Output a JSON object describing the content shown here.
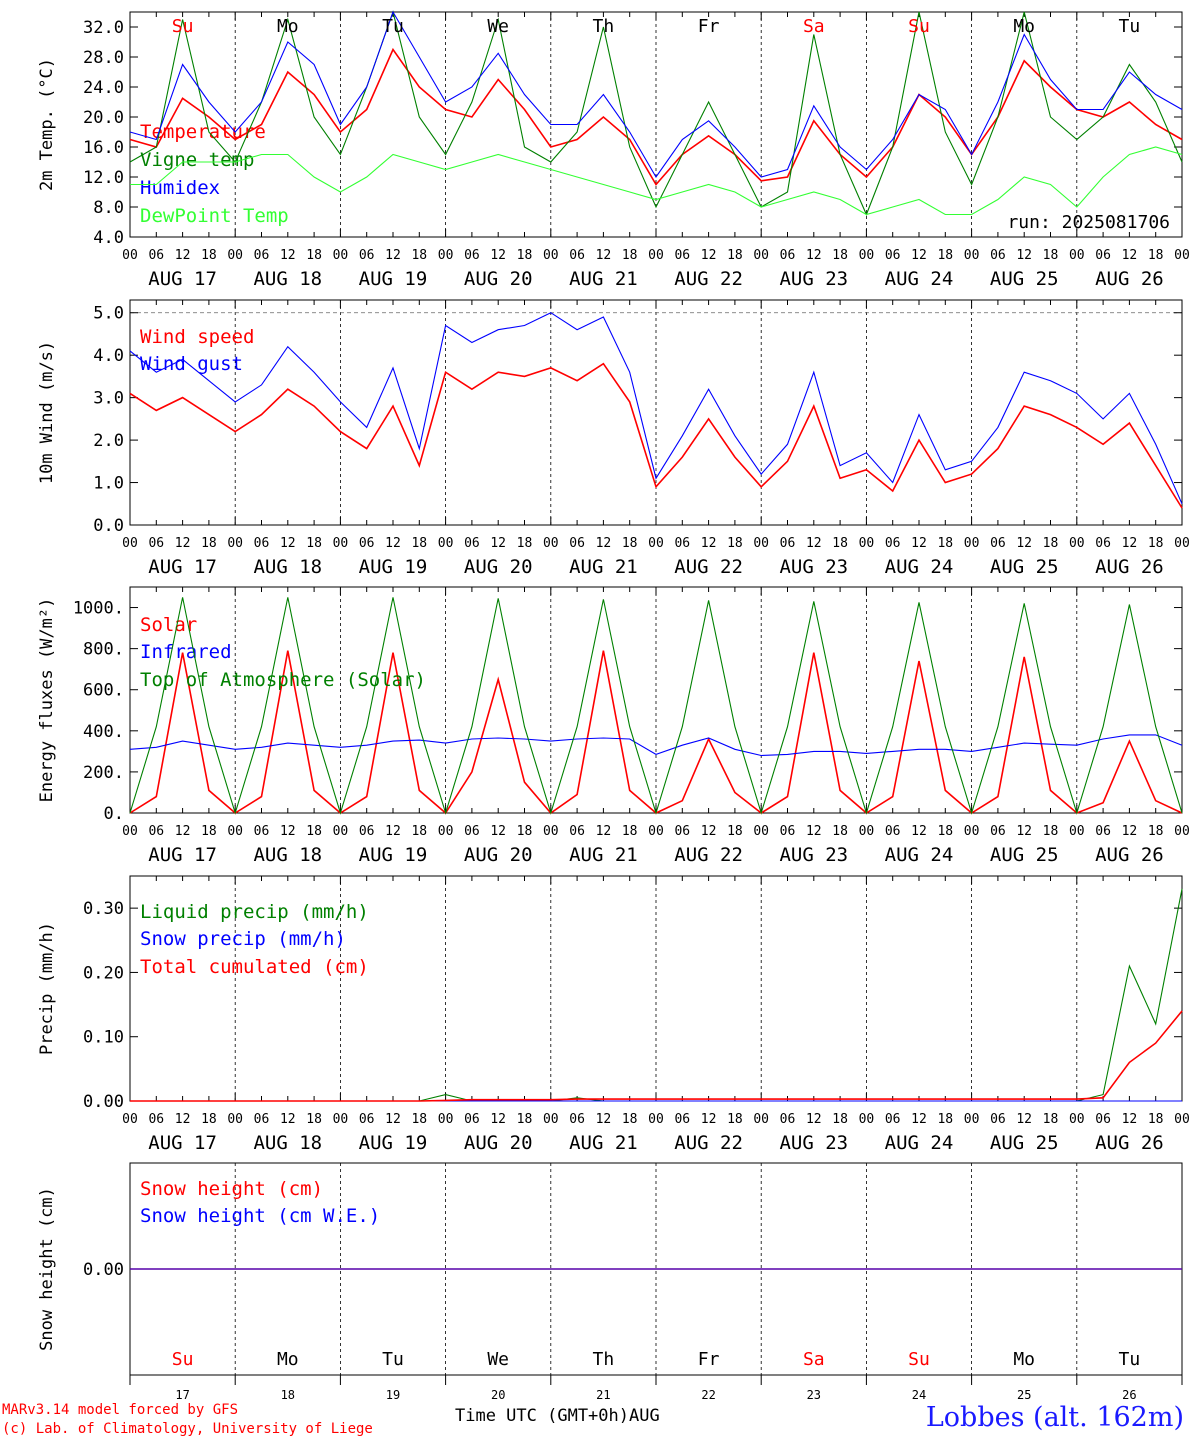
{
  "run_label": "run: 2025081706",
  "footer": {
    "model": "MARv3.14 model forced by GFS",
    "copyright": "(c) Lab. of Climatology, University of Liege",
    "time_axis": "Time UTC (GMT+0h)AUG",
    "station": "Lobbes (alt. 162m)"
  },
  "day_labels": [
    "Su",
    "Mo",
    "Tu",
    "We",
    "Th",
    "Fr",
    "Sa",
    "Su",
    "Mo",
    "Tu"
  ],
  "day_label_colors": [
    "#ff0000",
    "#000000",
    "#000000",
    "#000000",
    "#000000",
    "#000000",
    "#ff0000",
    "#ff0000",
    "#000000",
    "#000000"
  ],
  "hour_ticks": [
    "00",
    "06",
    "12",
    "18"
  ],
  "hour_end": "00",
  "date_labels": [
    "AUG 17",
    "AUG 18",
    "AUG 19",
    "AUG 20",
    "AUG 21",
    "AUG 22",
    "AUG 23",
    "AUG 24",
    "AUG 25",
    "AUG 26"
  ],
  "bottom_days": [
    "17",
    "18",
    "19",
    "20",
    "21",
    "22",
    "23",
    "24",
    "25",
    "26"
  ],
  "chart_data": [
    {
      "type": "line",
      "ylabel": "2m Temp. (°C)",
      "ylim": [
        4.0,
        34.0
      ],
      "yticks": [
        "4.0",
        "8.0",
        "12.0",
        "16.0",
        "20.0",
        "24.0",
        "28.0",
        "32.0"
      ],
      "x_hours": [
        0,
        6,
        12,
        18,
        24,
        30,
        36,
        42,
        48,
        54,
        60,
        66,
        72,
        78,
        84,
        90,
        96,
        102,
        108,
        114,
        120,
        126,
        132,
        138,
        144,
        150,
        156,
        162,
        168,
        174,
        180,
        186,
        192,
        198,
        204,
        210,
        216,
        222,
        228,
        234,
        240
      ],
      "series": [
        {
          "name": "Temperature",
          "color": "#ff0000",
          "values": [
            17,
            16,
            22.5,
            20,
            17,
            19,
            26,
            23,
            18,
            21,
            29,
            24,
            21,
            20,
            25,
            21,
            16,
            17,
            20,
            17,
            11,
            15,
            17.5,
            15,
            11.5,
            12,
            19.5,
            15,
            12,
            16,
            23,
            20,
            15,
            20,
            27.5,
            24,
            21,
            20,
            22,
            19,
            17
          ]
        },
        {
          "name": "Vigne temp",
          "color": "#008000",
          "values": [
            14,
            16,
            33,
            18,
            14,
            22,
            33,
            20,
            15,
            24,
            34,
            20,
            15,
            22,
            33,
            16,
            14,
            18,
            32,
            16,
            8,
            15,
            22,
            15,
            8,
            10,
            31,
            15,
            7,
            16,
            34,
            18,
            11,
            20,
            34,
            20,
            17,
            20,
            27,
            22,
            14
          ]
        },
        {
          "name": "Humidex",
          "color": "#0000ff",
          "values": [
            18,
            17,
            27,
            22,
            18,
            22,
            30,
            27,
            19,
            24,
            34,
            28,
            22,
            24,
            28.5,
            23,
            19,
            19,
            23,
            18,
            12,
            17,
            19.5,
            16,
            12,
            13,
            21.5,
            16,
            13,
            17,
            23,
            21,
            15,
            22,
            31,
            25,
            21,
            21,
            26,
            23,
            21
          ]
        },
        {
          "name": "DewPoint Temp",
          "color": "#33ff33",
          "values": [
            11,
            11,
            14,
            14,
            14,
            15,
            15,
            12,
            10,
            12,
            15,
            14,
            13,
            14,
            15,
            14,
            13,
            12,
            11,
            10,
            9,
            10,
            11,
            10,
            8,
            9,
            10,
            9,
            7,
            8,
            9,
            7,
            7,
            9,
            12,
            11,
            8,
            12,
            15,
            16,
            15
          ]
        }
      ],
      "legend_placement": "left",
      "grid": "dashed day separators"
    },
    {
      "type": "line",
      "ylabel": "10m Wind (m/s)",
      "ylim": [
        0.0,
        5.3
      ],
      "yticks": [
        "0.0",
        "1.0",
        "2.0",
        "3.0",
        "4.0",
        "5.0"
      ],
      "x_hours": [
        0,
        6,
        12,
        18,
        24,
        30,
        36,
        42,
        48,
        54,
        60,
        66,
        72,
        78,
        84,
        90,
        96,
        102,
        108,
        114,
        120,
        126,
        132,
        138,
        144,
        150,
        156,
        162,
        168,
        174,
        180,
        186,
        192,
        198,
        204,
        210,
        216,
        222,
        228,
        234,
        240
      ],
      "series": [
        {
          "name": "Wind speed",
          "color": "#ff0000",
          "values": [
            3.1,
            2.7,
            3.0,
            2.6,
            2.2,
            2.6,
            3.2,
            2.8,
            2.2,
            1.8,
            2.8,
            1.4,
            3.6,
            3.2,
            3.6,
            3.5,
            3.7,
            3.4,
            3.8,
            2.9,
            0.9,
            1.6,
            2.5,
            1.6,
            0.9,
            1.5,
            2.8,
            1.1,
            1.3,
            0.8,
            2.0,
            1.0,
            1.2,
            1.8,
            2.8,
            2.6,
            2.3,
            1.9,
            2.4,
            1.4,
            0.4
          ]
        },
        {
          "name": "Wind gust",
          "color": "#0000ff",
          "values": [
            4.1,
            3.6,
            3.9,
            3.4,
            2.9,
            3.3,
            4.2,
            3.6,
            2.9,
            2.3,
            3.7,
            1.8,
            4.7,
            4.3,
            4.6,
            4.7,
            5.0,
            4.6,
            4.9,
            3.6,
            1.1,
            2.1,
            3.2,
            2.1,
            1.2,
            1.9,
            3.6,
            1.4,
            1.7,
            1.0,
            2.6,
            1.3,
            1.5,
            2.3,
            3.6,
            3.4,
            3.1,
            2.5,
            3.1,
            1.9,
            0.5
          ]
        }
      ],
      "legend_placement": "left",
      "reference_line": 5.0
    },
    {
      "type": "line",
      "ylabel": "Energy fluxes (W/m²)",
      "ylim": [
        0,
        1100
      ],
      "yticks": [
        "0.",
        "200.",
        "400.",
        "600.",
        "800.",
        "1000."
      ],
      "x_hours": [
        0,
        6,
        12,
        18,
        24,
        30,
        36,
        42,
        48,
        54,
        60,
        66,
        72,
        78,
        84,
        90,
        96,
        102,
        108,
        114,
        120,
        126,
        132,
        138,
        144,
        150,
        156,
        162,
        168,
        174,
        180,
        186,
        192,
        198,
        204,
        210,
        216,
        222,
        228,
        234,
        240
      ],
      "series": [
        {
          "name": "Solar",
          "color": "#ff0000",
          "values": [
            0,
            80,
            780,
            110,
            0,
            80,
            790,
            110,
            0,
            80,
            780,
            110,
            0,
            200,
            650,
            150,
            0,
            90,
            790,
            110,
            0,
            60,
            360,
            100,
            0,
            80,
            780,
            110,
            0,
            80,
            740,
            110,
            0,
            80,
            760,
            110,
            0,
            50,
            350,
            60,
            0
          ]
        },
        {
          "name": "Infrared",
          "color": "#0000ff",
          "values": [
            310,
            320,
            350,
            330,
            310,
            320,
            340,
            330,
            320,
            330,
            350,
            355,
            340,
            360,
            365,
            360,
            350,
            360,
            365,
            360,
            285,
            330,
            365,
            310,
            280,
            285,
            300,
            300,
            290,
            300,
            310,
            310,
            300,
            320,
            340,
            335,
            330,
            360,
            380,
            380,
            330
          ]
        },
        {
          "name": "Top of Atmosphere (Solar)",
          "color": "#008000",
          "values": [
            0,
            420,
            1050,
            420,
            0,
            420,
            1050,
            420,
            0,
            420,
            1050,
            420,
            0,
            420,
            1045,
            420,
            0,
            420,
            1040,
            420,
            0,
            420,
            1035,
            420,
            0,
            420,
            1030,
            420,
            0,
            420,
            1025,
            420,
            0,
            420,
            1020,
            420,
            0,
            420,
            1015,
            420,
            0
          ]
        }
      ],
      "legend_placement": "left"
    },
    {
      "type": "line",
      "ylabel": "Precip (mm/h)",
      "ylim": [
        0.0,
        0.35
      ],
      "yticks": [
        "0.00",
        "0.10",
        "0.20",
        "0.30"
      ],
      "x_hours": [
        0,
        6,
        12,
        18,
        24,
        30,
        36,
        42,
        48,
        54,
        60,
        66,
        72,
        78,
        84,
        90,
        96,
        102,
        108,
        114,
        120,
        126,
        132,
        138,
        144,
        150,
        156,
        162,
        168,
        174,
        180,
        186,
        192,
        198,
        204,
        210,
        216,
        222,
        228,
        234,
        240
      ],
      "series": [
        {
          "name": "Liquid precip (mm/h)",
          "color": "#008000",
          "values": [
            0,
            0,
            0,
            0,
            0,
            0,
            0,
            0,
            0,
            0,
            0,
            0,
            0.01,
            0,
            0,
            0,
            0,
            0.005,
            0,
            0,
            0,
            0,
            0,
            0,
            0,
            0,
            0,
            0,
            0,
            0,
            0,
            0,
            0,
            0,
            0,
            0,
            0,
            0.01,
            0.21,
            0.12,
            0.33
          ]
        },
        {
          "name": "Snow precip (mm/h)",
          "color": "#0000ff",
          "values": [
            0,
            0,
            0,
            0,
            0,
            0,
            0,
            0,
            0,
            0,
            0,
            0,
            0,
            0,
            0,
            0,
            0,
            0,
            0,
            0,
            0,
            0,
            0,
            0,
            0,
            0,
            0,
            0,
            0,
            0,
            0,
            0,
            0,
            0,
            0,
            0,
            0,
            0,
            0,
            0,
            0
          ]
        },
        {
          "name": "Total cumulated (cm)",
          "color": "#ff0000",
          "values": [
            0,
            0,
            0,
            0,
            0,
            0,
            0,
            0,
            0,
            0,
            0,
            0,
            0.001,
            0.002,
            0.002,
            0.002,
            0.002,
            0.003,
            0.003,
            0.003,
            0.003,
            0.003,
            0.003,
            0.003,
            0.003,
            0.003,
            0.003,
            0.003,
            0.003,
            0.003,
            0.003,
            0.003,
            0.003,
            0.003,
            0.003,
            0.003,
            0.003,
            0.005,
            0.06,
            0.09,
            0.14
          ]
        }
      ],
      "legend_placement": "left"
    },
    {
      "type": "line",
      "ylabel": "Snow height (cm)",
      "ylim": [
        -1,
        1
      ],
      "yticks": [
        "0.00"
      ],
      "x_hours": [
        0,
        240
      ],
      "series": [
        {
          "name": "Snow height (cm)",
          "color": "#ff0000",
          "values": [
            0,
            0
          ]
        },
        {
          "name": "Snow height (cm W.E.)",
          "color": "#0000ff",
          "values": [
            0,
            0
          ]
        }
      ],
      "legend_placement": "left"
    }
  ]
}
